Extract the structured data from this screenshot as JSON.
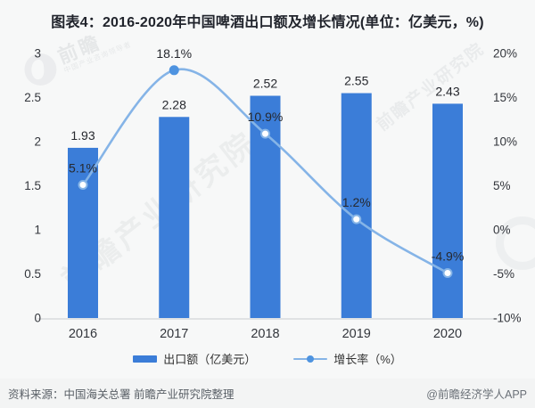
{
  "header": {
    "title": "图表4：2016-2020年中国啤酒出口额及增长情况(单位：亿美元，%)"
  },
  "chart_data": {
    "type": "combo-bar-line",
    "categories": [
      "2016",
      "2017",
      "2018",
      "2019",
      "2020"
    ],
    "series": [
      {
        "name": "出口额（亿美元）",
        "type": "bar",
        "axis": "left",
        "values": [
          1.93,
          2.28,
          2.52,
          2.55,
          2.43
        ],
        "labels": [
          "1.93",
          "2.28",
          "2.52",
          "2.55",
          "2.43"
        ],
        "color": "#3b7dd8"
      },
      {
        "name": "增长率（%）",
        "type": "line",
        "axis": "right",
        "values": [
          5.1,
          18.1,
          10.9,
          1.2,
          -4.9
        ],
        "labels": [
          "5.1%",
          "18.1%",
          "10.9%",
          "1.2%",
          "-4.9%"
        ],
        "color": "#85b4e7",
        "solid_dot_color": "#4e93e0",
        "point_styles": [
          "open",
          "solid",
          "open",
          "open",
          "open"
        ]
      }
    ],
    "left_axis": {
      "min": 0,
      "max": 3,
      "ticks": [
        "3",
        "2.5",
        "2",
        "1.5",
        "1",
        "0.5",
        "0"
      ]
    },
    "right_axis": {
      "min": -10,
      "max": 20,
      "ticks": [
        "20%",
        "15%",
        "10%",
        "5%",
        "0%",
        "-5%",
        "-10%"
      ]
    },
    "grid": false,
    "legend_position": "bottom",
    "label_color": "#26282e",
    "tick_color": "#33363c",
    "axis_line_color": "#d9dbdd"
  },
  "watermarks": {
    "center_text": "前瞻产业研究院",
    "top_right_text": "前瞻产业研究院",
    "corner_brand": "前瞻",
    "corner_sub": "中国产业咨询领导者"
  },
  "footer": {
    "source": "资料来源：中国海关总署 前瞻产业研究院整理",
    "brand": "@前瞻经济学人APP"
  }
}
